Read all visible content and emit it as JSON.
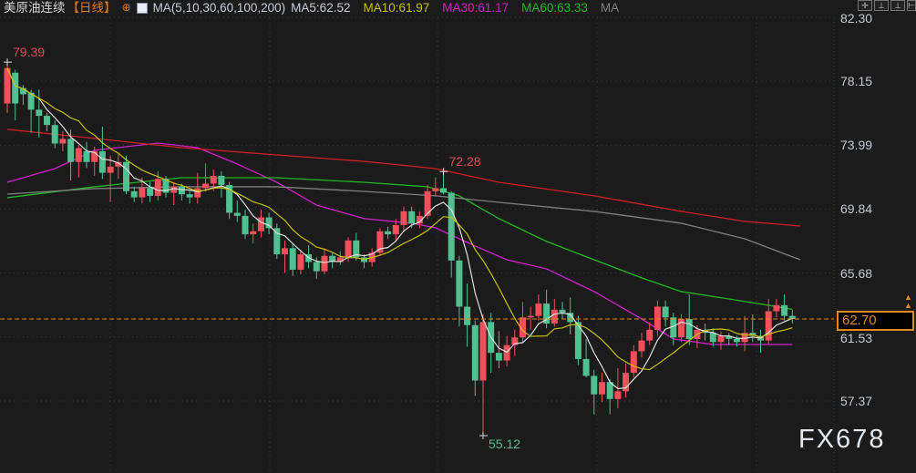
{
  "header": {
    "instrument": "美原油连续",
    "period": "【日线】",
    "ma_settings": "MA(5,10,30,60,100,200)",
    "ma5": "MA5:62.52",
    "ma10": "MA10:61.97",
    "ma30": "MA30:61.17",
    "ma60": "MA60:63.33",
    "ma100": "MA"
  },
  "toolbar": {
    "icons": [
      "crosshair-icon",
      "zoom-in-icon",
      "zoom-out-icon",
      "exit-icon"
    ]
  },
  "price_tag": "62.70",
  "watermark": "FX678",
  "colors": {
    "up": "#f0505a",
    "down": "#50c090",
    "ma5": "#e0e0e0",
    "ma10": "#c8c000",
    "ma30": "#d020c8",
    "ma60": "#20b820",
    "ma100": "#808080",
    "ma200": "#d02020",
    "last_price": "#e08a20"
  },
  "chart_data": {
    "type": "candlestick",
    "ylim": [
      55.0,
      82.3
    ],
    "y_ticks": [
      "82.30",
      "78.15",
      "73.99",
      "69.84",
      "65.68",
      "61.53",
      "57.37"
    ],
    "last_price": 62.7,
    "annotations": [
      {
        "text": "79.39",
        "index": 0,
        "value": 79.39,
        "color": "#e04a55"
      },
      {
        "text": "72.28",
        "index": 55,
        "value": 72.28,
        "color": "#e04a55"
      },
      {
        "text": "55.12",
        "index": 60,
        "value": 55.12,
        "color": "#50c090"
      }
    ],
    "ohlc": [
      [
        76.7,
        79.39,
        76.1,
        79.0
      ],
      [
        78.7,
        78.9,
        75.6,
        76.7
      ],
      [
        77.7,
        77.9,
        76.6,
        77.3
      ],
      [
        77.4,
        77.6,
        74.8,
        76.3
      ],
      [
        76.3,
        77.6,
        74.5,
        75.9
      ],
      [
        75.9,
        76.1,
        74.9,
        75.3
      ],
      [
        75.3,
        75.6,
        73.8,
        74.1
      ],
      [
        74.1,
        74.9,
        73.6,
        74.4
      ],
      [
        74.4,
        75.0,
        71.7,
        72.9
      ],
      [
        72.9,
        74.0,
        71.9,
        73.8
      ],
      [
        73.6,
        74.2,
        72.5,
        72.9
      ],
      [
        72.9,
        73.9,
        72.0,
        73.6
      ],
      [
        73.6,
        75.2,
        71.8,
        72.2
      ],
      [
        72.2,
        73.3,
        70.3,
        72.6
      ],
      [
        72.6,
        73.5,
        71.8,
        72.9
      ],
      [
        72.9,
        73.3,
        70.8,
        71.0
      ],
      [
        71.0,
        71.3,
        70.3,
        70.6
      ],
      [
        70.6,
        71.9,
        70.2,
        71.2
      ],
      [
        71.2,
        71.6,
        70.3,
        70.7
      ],
      [
        70.7,
        72.3,
        70.4,
        71.8
      ],
      [
        71.8,
        72.0,
        70.6,
        70.9
      ],
      [
        70.9,
        71.6,
        70.1,
        71.3
      ],
      [
        71.3,
        71.5,
        70.4,
        70.8
      ],
      [
        70.8,
        71.1,
        70.2,
        70.6
      ],
      [
        70.6,
        72.2,
        70.2,
        71.2
      ],
      [
        71.2,
        72.8,
        71.0,
        71.5
      ],
      [
        71.5,
        72.4,
        71.0,
        72.0
      ],
      [
        72.0,
        72.3,
        70.6,
        71.4
      ],
      [
        71.4,
        71.6,
        69.2,
        69.6
      ],
      [
        69.6,
        70.4,
        69.0,
        69.4
      ],
      [
        69.4,
        69.8,
        67.9,
        68.2
      ],
      [
        68.2,
        68.9,
        67.6,
        68.4
      ],
      [
        68.4,
        69.8,
        68.0,
        69.3
      ],
      [
        69.3,
        69.6,
        68.2,
        68.6
      ],
      [
        68.6,
        68.9,
        66.6,
        66.9
      ],
      [
        66.9,
        67.8,
        65.7,
        67.3
      ],
      [
        67.3,
        67.6,
        65.5,
        65.9
      ],
      [
        65.9,
        67.2,
        65.6,
        66.9
      ],
      [
        66.9,
        67.5,
        66.0,
        66.4
      ],
      [
        66.4,
        66.7,
        65.3,
        65.8
      ],
      [
        65.8,
        67.3,
        65.6,
        66.8
      ],
      [
        66.8,
        67.0,
        66.0,
        66.4
      ],
      [
        66.4,
        67.1,
        66.2,
        66.7
      ],
      [
        66.7,
        68.0,
        66.4,
        67.8
      ],
      [
        67.8,
        68.3,
        66.5,
        66.7
      ],
      [
        66.7,
        66.9,
        66.0,
        66.4
      ],
      [
        66.4,
        67.3,
        66.1,
        67.0
      ],
      [
        67.0,
        68.6,
        66.8,
        68.4
      ],
      [
        68.4,
        68.7,
        67.9,
        68.2
      ],
      [
        68.2,
        69.2,
        67.8,
        68.8
      ],
      [
        68.8,
        70.0,
        68.5,
        69.7
      ],
      [
        69.7,
        70.0,
        68.6,
        68.9
      ],
      [
        68.9,
        69.7,
        68.6,
        69.4
      ],
      [
        69.4,
        71.4,
        69.2,
        71.0
      ],
      [
        71.0,
        71.9,
        70.7,
        71.2
      ],
      [
        71.2,
        72.28,
        70.8,
        70.9
      ],
      [
        70.9,
        71.0,
        65.4,
        66.5
      ],
      [
        66.5,
        66.8,
        62.2,
        63.5
      ],
      [
        63.5,
        65.0,
        60.9,
        62.3
      ],
      [
        62.3,
        62.6,
        57.7,
        58.7
      ],
      [
        58.7,
        63.0,
        55.12,
        62.5
      ],
      [
        62.5,
        63.1,
        59.2,
        60.5
      ],
      [
        60.5,
        61.9,
        59.5,
        60.0
      ],
      [
        60.0,
        61.6,
        59.6,
        61.0
      ],
      [
        61.0,
        62.0,
        60.3,
        61.5
      ],
      [
        61.5,
        63.8,
        61.2,
        62.8
      ],
      [
        62.8,
        63.5,
        62.0,
        62.9
      ],
      [
        62.9,
        64.3,
        62.6,
        63.7
      ],
      [
        63.7,
        64.6,
        62.1,
        62.4
      ],
      [
        62.4,
        64.0,
        62.2,
        63.3
      ],
      [
        63.3,
        63.8,
        62.7,
        63.1
      ],
      [
        63.1,
        64.1,
        61.7,
        62.5
      ],
      [
        62.5,
        62.9,
        59.7,
        60.1
      ],
      [
        60.1,
        61.4,
        58.9,
        59.0
      ],
      [
        59.0,
        59.4,
        56.5,
        57.8
      ],
      [
        57.8,
        59.2,
        57.3,
        58.6
      ],
      [
        58.6,
        58.8,
        56.5,
        57.5
      ],
      [
        57.5,
        59.5,
        56.9,
        58.0
      ],
      [
        58.0,
        59.8,
        57.6,
        59.2
      ],
      [
        59.2,
        61.0,
        58.9,
        60.6
      ],
      [
        60.6,
        61.8,
        60.2,
        61.3
      ],
      [
        61.3,
        62.5,
        61.0,
        62.0
      ],
      [
        62.0,
        63.9,
        61.6,
        63.5
      ],
      [
        63.5,
        63.9,
        62.2,
        62.8
      ],
      [
        62.8,
        63.1,
        61.0,
        61.5
      ],
      [
        61.5,
        63.0,
        61.2,
        62.7
      ],
      [
        62.7,
        64.3,
        61.0,
        61.4
      ],
      [
        61.4,
        62.3,
        60.8,
        62.0
      ],
      [
        62.0,
        62.4,
        61.3,
        61.8
      ],
      [
        61.8,
        62.1,
        60.9,
        61.2
      ],
      [
        61.2,
        61.9,
        60.7,
        61.6
      ],
      [
        61.6,
        61.8,
        61.0,
        61.4
      ],
      [
        61.4,
        61.6,
        60.9,
        61.2
      ],
      [
        61.2,
        62.9,
        60.6,
        61.8
      ],
      [
        61.8,
        63.0,
        61.2,
        61.6
      ],
      [
        61.6,
        62.0,
        60.5,
        61.3
      ],
      [
        61.3,
        64.0,
        61.1,
        63.2
      ],
      [
        63.2,
        64.0,
        62.8,
        63.6
      ],
      [
        63.6,
        64.3,
        62.6,
        62.9
      ],
      [
        62.9,
        63.3,
        62.4,
        62.7
      ]
    ],
    "moving_averages": [
      {
        "name": "MA30",
        "points": [
          [
            0,
            71.58
          ],
          [
            6,
            72.47
          ],
          [
            11,
            73.66
          ],
          [
            19,
            74.13
          ],
          [
            24,
            73.83
          ],
          [
            29,
            72.77
          ],
          [
            34,
            71.58
          ],
          [
            39,
            70.1
          ],
          [
            45,
            69.22
          ],
          [
            51,
            68.92
          ],
          [
            54,
            68.62
          ],
          [
            59,
            67.44
          ],
          [
            63,
            66.55
          ],
          [
            68,
            65.96
          ],
          [
            74,
            64.48
          ],
          [
            80,
            62.7
          ],
          [
            84,
            61.4
          ],
          [
            89,
            61.04
          ],
          [
            99,
            61.04
          ]
        ]
      },
      {
        "name": "MA60",
        "points": [
          [
            0,
            70.58
          ],
          [
            11,
            71.29
          ],
          [
            22,
            71.88
          ],
          [
            34,
            71.88
          ],
          [
            45,
            71.58
          ],
          [
            53,
            71.29
          ],
          [
            57,
            70.7
          ],
          [
            62,
            69.22
          ],
          [
            68,
            67.74
          ],
          [
            74,
            66.55
          ],
          [
            80,
            65.37
          ],
          [
            85,
            64.48
          ],
          [
            91,
            64.0
          ],
          [
            96,
            63.59
          ],
          [
            99,
            63.33
          ]
        ]
      },
      {
        "name": "MA100",
        "points": [
          [
            0,
            70.81
          ],
          [
            11,
            71.17
          ],
          [
            22,
            71.29
          ],
          [
            34,
            71.29
          ],
          [
            45,
            70.99
          ],
          [
            54,
            70.7
          ],
          [
            62,
            70.28
          ],
          [
            74,
            69.69
          ],
          [
            85,
            68.92
          ],
          [
            93,
            67.91
          ],
          [
            100,
            66.55
          ]
        ]
      },
      {
        "name": "MA200",
        "points": [
          [
            0,
            75.02
          ],
          [
            11,
            74.43
          ],
          [
            22,
            73.83
          ],
          [
            34,
            73.36
          ],
          [
            45,
            72.94
          ],
          [
            54,
            72.47
          ],
          [
            62,
            71.58
          ],
          [
            74,
            70.7
          ],
          [
            85,
            69.69
          ],
          [
            93,
            69.04
          ],
          [
            100,
            68.74
          ]
        ]
      }
    ]
  }
}
